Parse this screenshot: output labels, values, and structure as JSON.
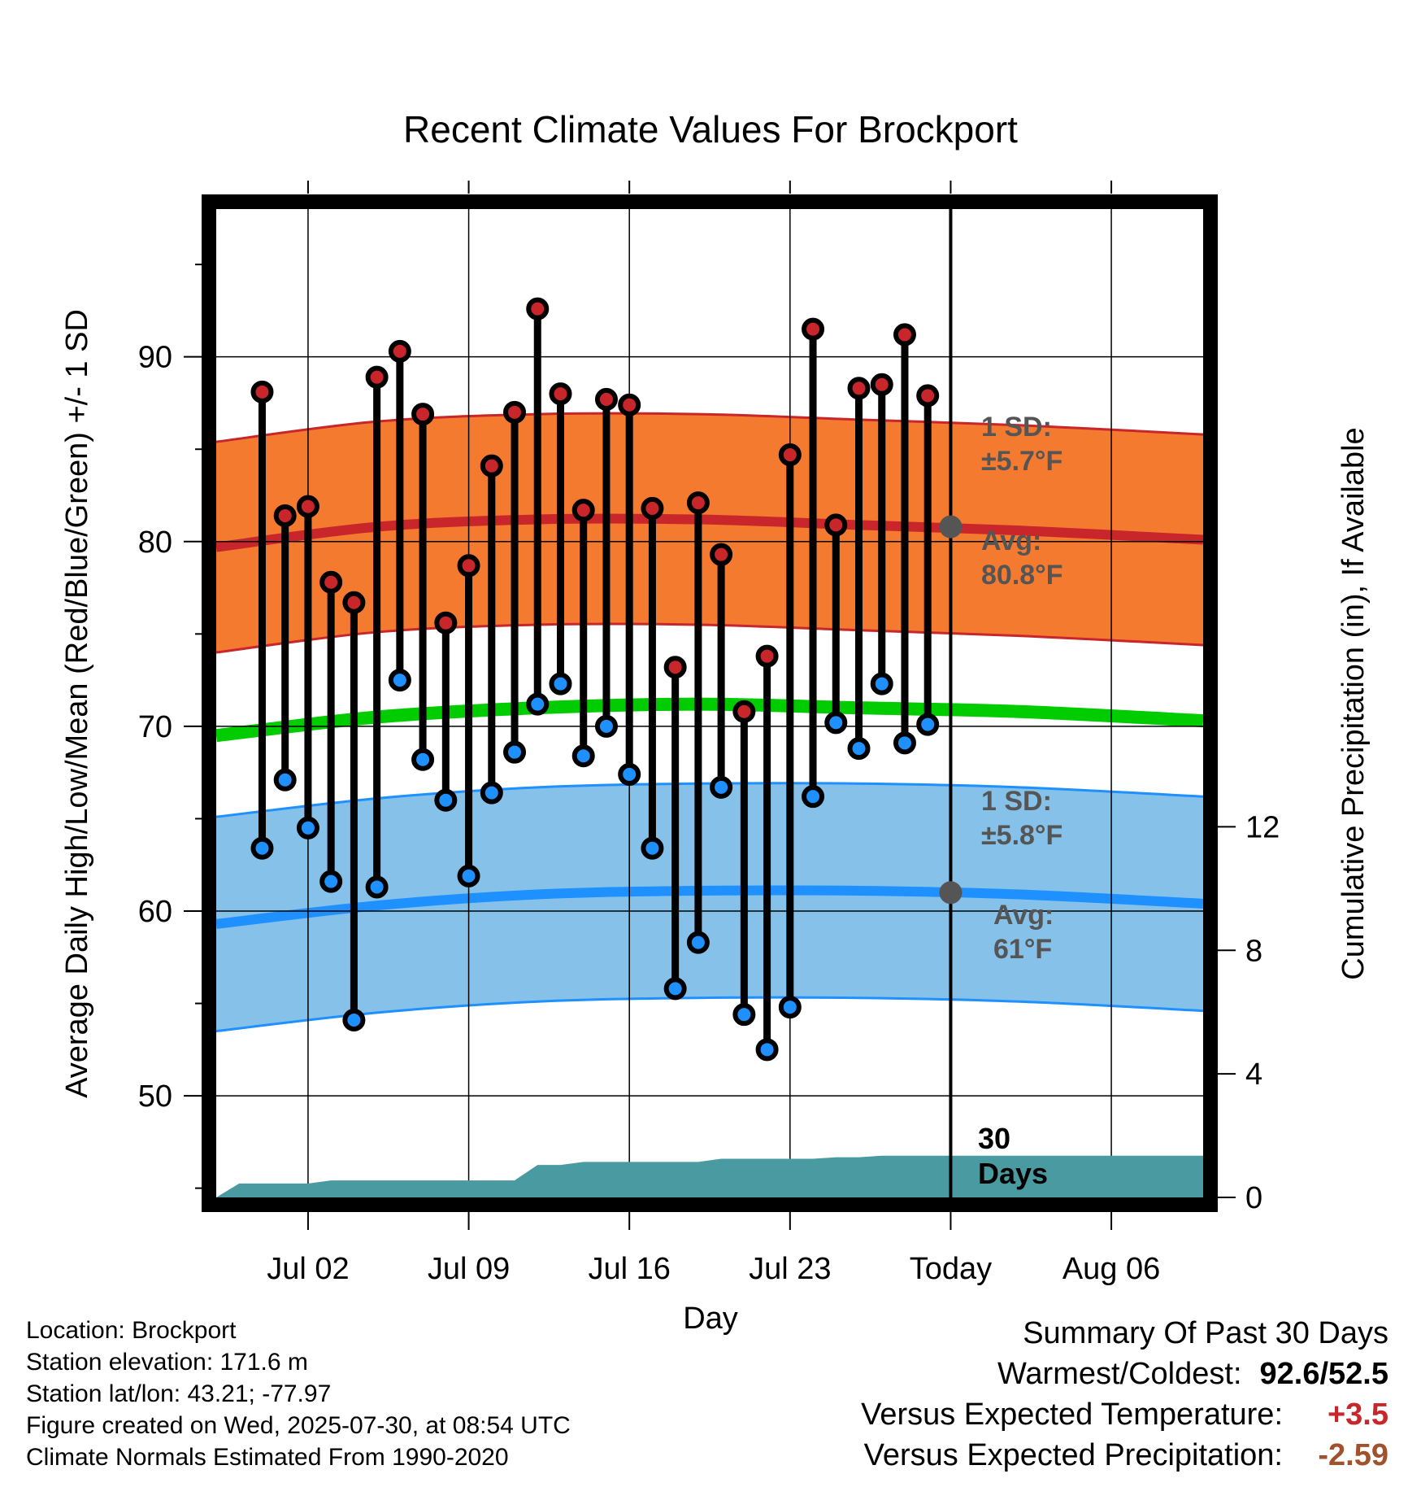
{
  "chart_data": {
    "type": "line",
    "title": "Recent Climate Values For Brockport",
    "xlabel": "Day",
    "ylabel": "Average Daily High/Low/Mean (Red/Blue/Green) +/- 1 SD",
    "y2label": "Cumulative Precipitation (in), If Available",
    "x_range_days": [
      -32,
      11
    ],
    "x_ticks": [
      {
        "day": -28,
        "label": "Jul 02"
      },
      {
        "day": -21,
        "label": "Jul 09"
      },
      {
        "day": -14,
        "label": "Jul 16"
      },
      {
        "day": -7,
        "label": "Jul 23"
      },
      {
        "day": 0,
        "label": "Today"
      },
      {
        "day": 7,
        "label": "Aug 06"
      }
    ],
    "ylim": [
      44.5,
      98
    ],
    "y_ticks": [
      50,
      60,
      70,
      80,
      90
    ],
    "y2lim": [
      0,
      32
    ],
    "y2_ticks": [
      0,
      4,
      8,
      12
    ],
    "grid": true,
    "series": [
      {
        "name": "High",
        "color": "#c8262a",
        "x": [
          -30,
          -29,
          -28,
          -27,
          -26,
          -25,
          -24,
          -23,
          -22,
          -21,
          -20,
          -19,
          -18,
          -17,
          -16,
          -15,
          -14,
          -13,
          -12,
          -11,
          -10,
          -9,
          -8,
          -7,
          -6,
          -5,
          -4,
          -3,
          -2,
          -1
        ],
        "values": [
          88.1,
          81.4,
          81.9,
          77.8,
          76.7,
          88.9,
          90.3,
          86.9,
          75.6,
          78.7,
          84.1,
          87.0,
          92.6,
          88.0,
          81.7,
          87.7,
          87.4,
          81.8,
          73.2,
          82.1,
          79.3,
          70.8,
          73.8,
          84.7,
          91.5,
          80.9,
          88.3,
          88.5,
          91.2,
          87.9
        ]
      },
      {
        "name": "Low",
        "color": "#1e90ff",
        "x": [
          -30,
          -29,
          -28,
          -27,
          -26,
          -25,
          -24,
          -23,
          -22,
          -21,
          -20,
          -19,
          -18,
          -17,
          -16,
          -15,
          -14,
          -13,
          -12,
          -11,
          -10,
          -9,
          -8,
          -7,
          -6,
          -5,
          -4,
          -3,
          -2,
          -1
        ],
        "values": [
          63.4,
          67.1,
          64.5,
          61.6,
          54.1,
          61.3,
          72.5,
          68.2,
          66.0,
          61.9,
          66.4,
          68.6,
          71.2,
          72.3,
          68.4,
          70.0,
          67.4,
          63.4,
          55.8,
          58.3,
          66.7,
          54.4,
          52.5,
          54.8,
          66.2,
          70.2,
          68.8,
          72.3,
          69.1,
          70.1
        ]
      },
      {
        "name": "Precipitation",
        "color": "#4a9ba1",
        "x": [
          -32,
          -31,
          -29,
          -28,
          -27,
          -26,
          -25,
          -24,
          -23,
          -22,
          -21,
          -20,
          -19,
          -18,
          -17,
          -16,
          -15,
          -14,
          -13,
          -12,
          -11,
          -10,
          -9,
          -8,
          -7,
          -6,
          -5,
          -4,
          -3,
          -2,
          -1,
          11
        ],
        "values": [
          0,
          0.45,
          0.45,
          0.45,
          0.55,
          0.55,
          0.55,
          0.55,
          0.55,
          0.55,
          0.55,
          0.55,
          0.55,
          1.05,
          1.05,
          1.15,
          1.15,
          1.15,
          1.15,
          1.15,
          1.15,
          1.25,
          1.25,
          1.25,
          1.25,
          1.25,
          1.3,
          1.3,
          1.35,
          1.35,
          1.35,
          1.35
        ]
      }
    ],
    "normals": {
      "high": {
        "x": [
          -32,
          -25,
          -18,
          -11,
          -4,
          3,
          11
        ],
        "values": [
          79.7,
          80.8,
          81.2,
          81.2,
          80.9,
          80.6,
          80.1
        ],
        "sd": 5.7
      },
      "low": {
        "x": [
          -32,
          -25,
          -18,
          -11,
          -4,
          3,
          11
        ],
        "values": [
          59.3,
          60.3,
          60.9,
          61.1,
          61.1,
          60.9,
          60.4
        ],
        "sd": 5.8
      },
      "mean": {
        "x": [
          -32,
          -25,
          -18,
          -11,
          -4,
          3,
          11
        ],
        "values": [
          69.5,
          70.5,
          71.0,
          71.2,
          71.0,
          70.8,
          70.3
        ]
      }
    },
    "colors": {
      "high_band": "#f47a30",
      "high_line": "#c8262a",
      "low_band": "#85c1e9",
      "low_line": "#1e90ff",
      "mean_line": "#00cc00",
      "precip": "#4a9ba1",
      "annotation": "#555555"
    },
    "annotations": {
      "high_sd_label": "1 SD:",
      "high_sd_value": "±5.7°F",
      "high_avg_label": "Avg:",
      "high_avg_value": "80.8°F",
      "high_avg": 80.8,
      "low_sd_label": "1 SD:",
      "low_sd_value": "±5.8°F",
      "low_avg_label": "Avg:",
      "low_avg_value": "61°F",
      "low_avg": 61.0,
      "days_count": "30",
      "days_word": "Days"
    }
  },
  "info": {
    "location": "Location: Brockport",
    "elevation": "Station elevation: 171.6 m",
    "latlon": "Station lat/lon: 43.21; -77.97",
    "created": "Figure created on Wed, 2025-07-30, at 08:54 UTC",
    "normals": "Climate Normals Estimated From 1990-2020"
  },
  "summary": {
    "title": "Summary Of Past 30 Days",
    "warmest_label": "Warmest/Coldest:",
    "warmest_value": "92.6/52.5",
    "temp_label": "Versus Expected Temperature:",
    "temp_value": "+3.5",
    "precip_label": "Versus Expected Precipitation:",
    "precip_value": "-2.59"
  }
}
